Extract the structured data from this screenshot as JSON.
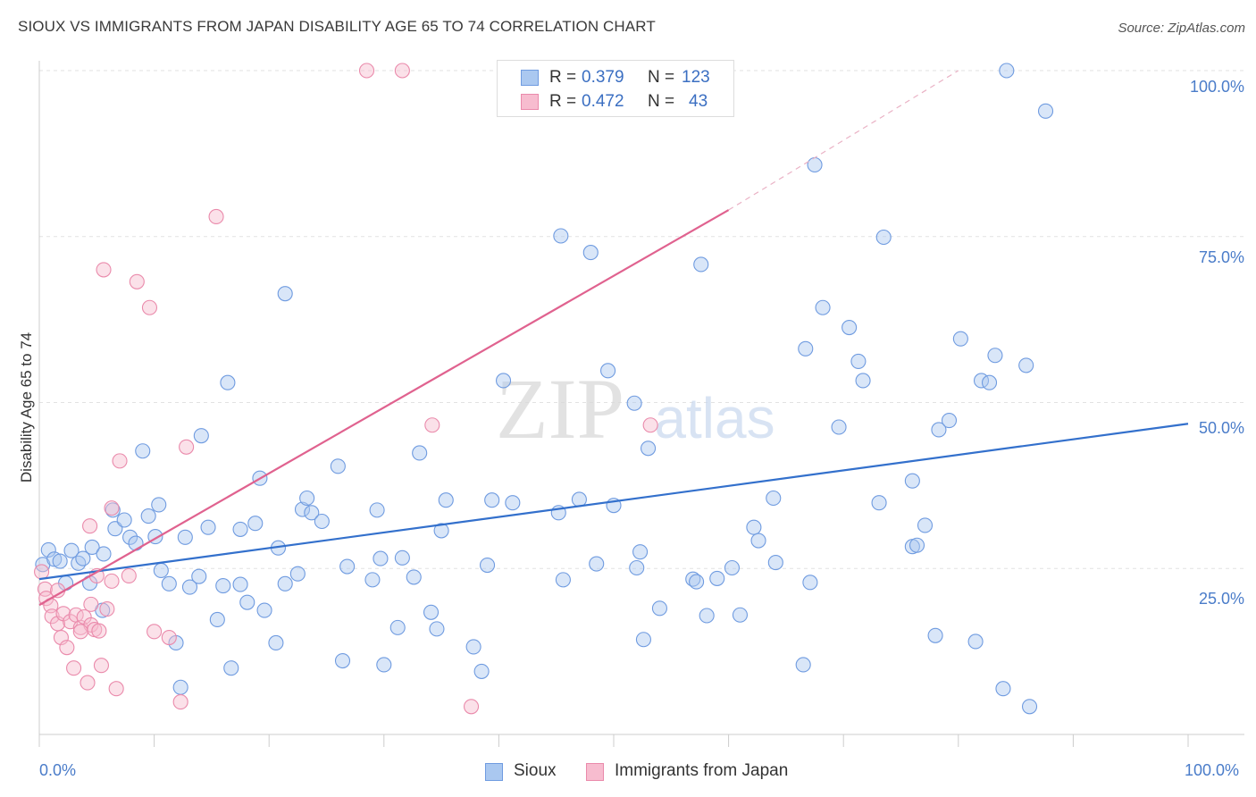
{
  "title": "SIOUX VS IMMIGRANTS FROM JAPAN DISABILITY AGE 65 TO 74 CORRELATION CHART",
  "source": "Source: ZipAtlas.com",
  "watermark": {
    "zip": "ZIP",
    "atlas": "atlas"
  },
  "legend": {
    "rows": [
      {
        "r_label": "R =",
        "r_value": "0.379",
        "n_label": "N =",
        "n_value": "123",
        "color": "#aac8f0",
        "stroke": "#6f9be0"
      },
      {
        "r_label": "R =",
        "r_value": "0.472",
        "n_label": "N =",
        "n_value": "43",
        "color": "#f7bccf",
        "stroke": "#ea8aab"
      }
    ]
  },
  "bottom_legend": [
    {
      "label": "Sioux",
      "color": "#aac8f0",
      "stroke": "#6f9be0"
    },
    {
      "label": "Immigrants from Japan",
      "color": "#f7bccf",
      "stroke": "#ea8aab"
    }
  ],
  "chart_data": {
    "type": "scatter",
    "ylabel": "Disability Age 65 to 74",
    "xlabel": "",
    "xlim": [
      0,
      100
    ],
    "ylim": [
      0,
      100
    ],
    "x_tick_labels": [
      "0.0%",
      "100.0%"
    ],
    "y_tick_labels": [
      "100.0%",
      "75.0%",
      "50.0%",
      "25.0%"
    ],
    "grid": true,
    "series": [
      {
        "name": "Sioux",
        "color": "#6f9be0",
        "fill": "#aac8f0",
        "trend": {
          "x": [
            0,
            100
          ],
          "y": [
            23.4,
            46.8
          ],
          "color": "#3370cc"
        },
        "points": [
          [
            0.3,
            25.6
          ],
          [
            0.8,
            27.8
          ],
          [
            1.3,
            26.4
          ],
          [
            1.8,
            26.1
          ],
          [
            2.3,
            22.8
          ],
          [
            2.8,
            27.7
          ],
          [
            3.4,
            25.8
          ],
          [
            3.8,
            26.5
          ],
          [
            4.4,
            22.8
          ],
          [
            4.6,
            28.2
          ],
          [
            5.6,
            27.2
          ],
          [
            5.5,
            18.7
          ],
          [
            6.6,
            31.0
          ],
          [
            6.4,
            33.8
          ],
          [
            7.4,
            32.3
          ],
          [
            7.9,
            29.7
          ],
          [
            8.4,
            28.8
          ],
          [
            9.0,
            42.7
          ],
          [
            9.5,
            32.9
          ],
          [
            10.1,
            29.8
          ],
          [
            10.4,
            34.6
          ],
          [
            10.6,
            24.7
          ],
          [
            11.3,
            22.7
          ],
          [
            11.9,
            13.8
          ],
          [
            12.3,
            7.1
          ],
          [
            12.7,
            29.7
          ],
          [
            13.1,
            22.2
          ],
          [
            13.9,
            23.8
          ],
          [
            14.1,
            45.0
          ],
          [
            14.7,
            31.2
          ],
          [
            15.5,
            17.3
          ],
          [
            16.0,
            22.4
          ],
          [
            16.4,
            53.0
          ],
          [
            16.7,
            10.0
          ],
          [
            17.5,
            22.6
          ],
          [
            17.5,
            30.9
          ],
          [
            18.1,
            19.9
          ],
          [
            18.8,
            31.8
          ],
          [
            19.2,
            38.6
          ],
          [
            19.6,
            18.7
          ],
          [
            20.6,
            13.8
          ],
          [
            20.8,
            28.1
          ],
          [
            21.4,
            66.4
          ],
          [
            21.4,
            22.7
          ],
          [
            22.5,
            24.2
          ],
          [
            22.9,
            33.9
          ],
          [
            23.3,
            35.6
          ],
          [
            23.7,
            33.4
          ],
          [
            24.6,
            32.1
          ],
          [
            26.0,
            40.4
          ],
          [
            26.4,
            11.1
          ],
          [
            26.8,
            25.3
          ],
          [
            29.0,
            23.3
          ],
          [
            29.4,
            33.8
          ],
          [
            29.7,
            26.5
          ],
          [
            30.0,
            10.5
          ],
          [
            31.2,
            16.1
          ],
          [
            31.6,
            26.6
          ],
          [
            32.6,
            23.7
          ],
          [
            33.1,
            42.4
          ],
          [
            34.1,
            18.4
          ],
          [
            34.6,
            15.9
          ],
          [
            35.0,
            30.7
          ],
          [
            35.4,
            35.3
          ],
          [
            37.8,
            13.2
          ],
          [
            38.5,
            9.5
          ],
          [
            39.0,
            25.5
          ],
          [
            39.4,
            35.3
          ],
          [
            40.4,
            53.3
          ],
          [
            41.2,
            34.9
          ],
          [
            45.2,
            33.4
          ],
          [
            45.4,
            75.1
          ],
          [
            45.6,
            23.3
          ],
          [
            47.0,
            35.4
          ],
          [
            48.0,
            72.6
          ],
          [
            48.5,
            25.7
          ],
          [
            49.5,
            54.8
          ],
          [
            50.0,
            34.5
          ],
          [
            51.8,
            49.9
          ],
          [
            52.0,
            25.1
          ],
          [
            52.3,
            27.5
          ],
          [
            52.6,
            14.3
          ],
          [
            53.0,
            43.1
          ],
          [
            54.0,
            19.0
          ],
          [
            56.9,
            23.4
          ],
          [
            57.2,
            23.0
          ],
          [
            57.6,
            70.8
          ],
          [
            58.1,
            17.9
          ],
          [
            59.0,
            23.5
          ],
          [
            60.3,
            25.1
          ],
          [
            61.0,
            18.0
          ],
          [
            62.2,
            31.2
          ],
          [
            62.6,
            29.2
          ],
          [
            63.9,
            35.6
          ],
          [
            64.1,
            25.9
          ],
          [
            66.5,
            10.5
          ],
          [
            66.7,
            58.1
          ],
          [
            67.1,
            22.9
          ],
          [
            67.5,
            85.8
          ],
          [
            68.2,
            64.3
          ],
          [
            69.6,
            46.3
          ],
          [
            70.5,
            61.3
          ],
          [
            71.3,
            56.2
          ],
          [
            71.7,
            53.3
          ],
          [
            73.1,
            34.9
          ],
          [
            73.5,
            74.9
          ],
          [
            76.0,
            38.2
          ],
          [
            76.0,
            28.3
          ],
          [
            76.4,
            28.5
          ],
          [
            77.1,
            31.5
          ],
          [
            78.0,
            14.9
          ],
          [
            78.3,
            45.9
          ],
          [
            79.2,
            47.3
          ],
          [
            80.2,
            59.6
          ],
          [
            81.5,
            14.0
          ],
          [
            82.0,
            53.3
          ],
          [
            82.7,
            53.0
          ],
          [
            83.2,
            57.1
          ],
          [
            83.9,
            6.9
          ],
          [
            84.2,
            100.0
          ],
          [
            85.9,
            55.6
          ],
          [
            86.2,
            4.2
          ],
          [
            87.6,
            93.9
          ]
        ]
      },
      {
        "name": "Immigrants from Japan",
        "color": "#ea8aab",
        "fill": "#f7bccf",
        "trend": {
          "x": [
            0,
            60
          ],
          "y": [
            19.5,
            79.0
          ],
          "dashed_to": [
            80,
            100
          ],
          "color": "#e0628f"
        },
        "points": [
          [
            0.2,
            24.5
          ],
          [
            0.5,
            21.9
          ],
          [
            0.6,
            20.5
          ],
          [
            1.0,
            19.4
          ],
          [
            1.1,
            17.8
          ],
          [
            1.6,
            16.7
          ],
          [
            1.9,
            14.6
          ],
          [
            2.1,
            18.2
          ],
          [
            2.4,
            13.1
          ],
          [
            2.7,
            17.0
          ],
          [
            3.0,
            10.0
          ],
          [
            3.2,
            18.0
          ],
          [
            3.6,
            16.1
          ],
          [
            3.9,
            17.7
          ],
          [
            4.2,
            7.8
          ],
          [
            4.5,
            16.5
          ],
          [
            4.5,
            19.6
          ],
          [
            4.4,
            31.4
          ],
          [
            4.8,
            15.8
          ],
          [
            5.0,
            23.9
          ],
          [
            5.2,
            15.6
          ],
          [
            5.4,
            10.4
          ],
          [
            5.6,
            70.0
          ],
          [
            5.9,
            18.9
          ],
          [
            6.3,
            23.1
          ],
          [
            6.3,
            34.1
          ],
          [
            6.7,
            6.9
          ],
          [
            7.0,
            41.2
          ],
          [
            7.8,
            23.9
          ],
          [
            8.5,
            68.2
          ],
          [
            9.6,
            64.3
          ],
          [
            10.0,
            15.5
          ],
          [
            11.3,
            14.6
          ],
          [
            12.3,
            4.9
          ],
          [
            12.8,
            43.3
          ],
          [
            15.4,
            78.0
          ],
          [
            28.5,
            100.0
          ],
          [
            31.6,
            100.0
          ],
          [
            34.2,
            46.6
          ],
          [
            37.6,
            4.2
          ],
          [
            53.2,
            46.6
          ],
          [
            1.6,
            21.7
          ],
          [
            3.6,
            15.5
          ]
        ]
      }
    ]
  }
}
